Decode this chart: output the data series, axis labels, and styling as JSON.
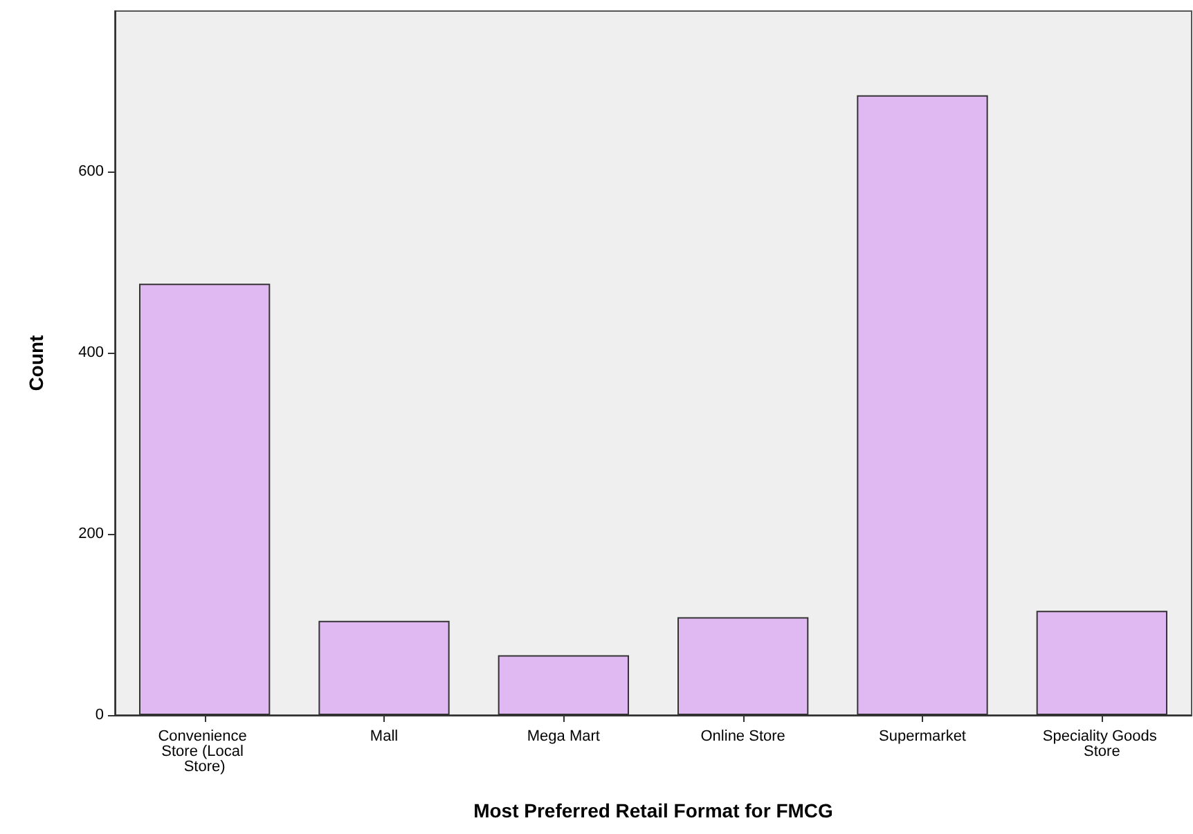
{
  "chart_data": {
    "type": "bar",
    "xlabel": "Most Preferred Retail Format for FMCG",
    "ylabel": "Count",
    "categories": [
      "Convenience Store (Local Store)",
      "Mall",
      "Mega Mart",
      "Online Store",
      "Supermarket",
      "Speciality Goods Store"
    ],
    "values": [
      476,
      104,
      66,
      108,
      684,
      115
    ],
    "color": "#e0b8f2",
    "ylim": [
      0,
      777
    ],
    "yticks": [
      0,
      200,
      400,
      600
    ],
    "grid": false
  }
}
